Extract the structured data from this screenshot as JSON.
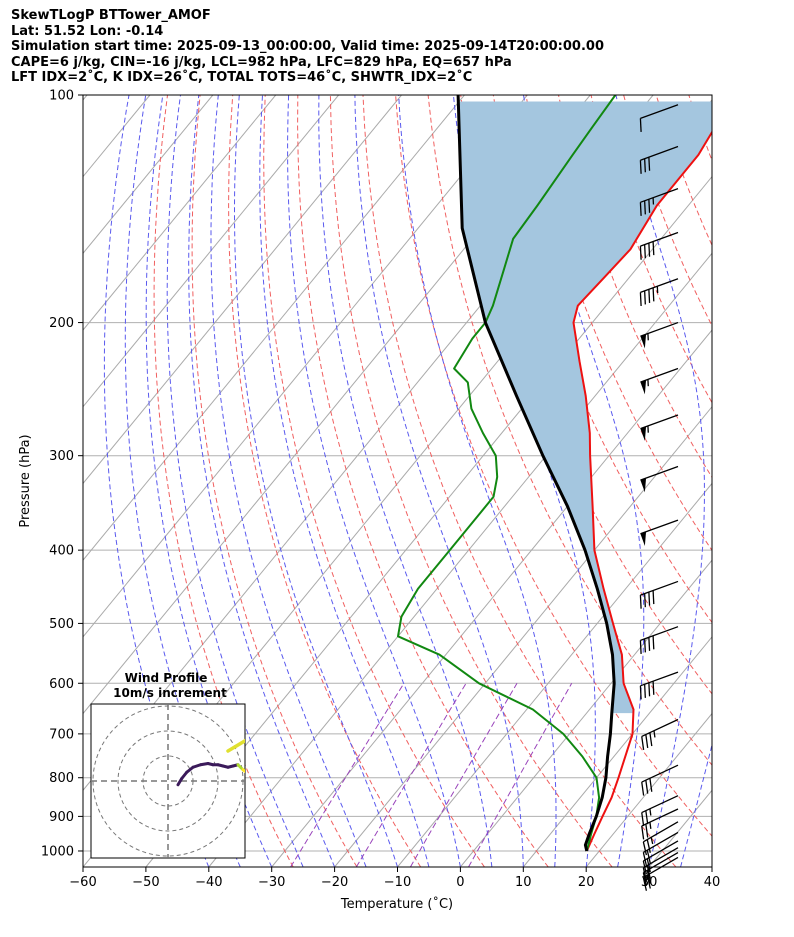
{
  "header": {
    "line1": "SkewTLogP BTTower_AMOF",
    "line2": "Lat: 51.52   Lon: -0.14",
    "line3": "Simulation start time: 2025-09-13_00:00:00, Valid time: 2025-09-14T20:00:00.00",
    "line4": "CAPE=6 j/kg, CIN=-16 j/kg, LCL=982 hPa, LFC=829 hPa, EQ=657 hPa",
    "line5": "LFT IDX=2˚C, K IDX=26˚C, TOTAL TOTS=46˚C, SHWTR_IDX=2˚C"
  },
  "colors": {
    "temperature": "#ee1111",
    "dewpoint": "#118811",
    "parcel": "#000000",
    "cape_fill": "#a4c6df",
    "dry_adiabat": "#f06060",
    "moist_adiabat": "#5a5aee",
    "isotherm": "#aaaaaa",
    "mixing_ratio": "#9944bb"
  },
  "chart_data": {
    "type": "line",
    "title": "SkewTLogP BTTower_AMOF",
    "xlabel": "Temperature (˚C)",
    "ylabel": "Pressure (hPa)",
    "xlim": [
      -60,
      40
    ],
    "ylim": [
      1050,
      100
    ],
    "x_ticks": [
      "−60",
      "−50",
      "−40",
      "−30",
      "−20",
      "−10",
      "0",
      "10",
      "20",
      "30",
      "40"
    ],
    "x_tick_values": [
      -60,
      -50,
      -40,
      -30,
      -20,
      -10,
      0,
      10,
      20,
      30,
      40
    ],
    "y_ticks": [
      "100",
      "200",
      "300",
      "400",
      "500",
      "600",
      "700",
      "800",
      "900",
      "1000"
    ],
    "y_tick_values": [
      100,
      200,
      300,
      400,
      500,
      600,
      700,
      800,
      900,
      1000
    ],
    "series": [
      {
        "name": "temperature",
        "points": [
          [
            1000,
            18.0
          ],
          [
            950,
            17.0
          ],
          [
            900,
            16.0
          ],
          [
            850,
            15.0
          ],
          [
            800,
            13.5
          ],
          [
            700,
            10.0
          ],
          [
            650,
            7.0
          ],
          [
            600,
            2.0
          ],
          [
            550,
            -2.0
          ],
          [
            500,
            -7.5
          ],
          [
            450,
            -13.5
          ],
          [
            400,
            -20.0
          ],
          [
            350,
            -26.0
          ],
          [
            300,
            -33.0
          ],
          [
            280,
            -36.0
          ],
          [
            250,
            -41.5
          ],
          [
            225,
            -47.0
          ],
          [
            210,
            -50.5
          ],
          [
            200,
            -53.0
          ],
          [
            190,
            -54.5
          ],
          [
            175,
            -54.0
          ],
          [
            160,
            -53.5
          ],
          [
            140,
            -55.0
          ],
          [
            120,
            -55.0
          ],
          [
            110,
            -56.0
          ],
          [
            100,
            -55.5
          ]
        ]
      },
      {
        "name": "dewpoint",
        "points": [
          [
            1000,
            18.0
          ],
          [
            950,
            16.5
          ],
          [
            900,
            15.0
          ],
          [
            850,
            13.0
          ],
          [
            800,
            10.0
          ],
          [
            750,
            5.0
          ],
          [
            700,
            -1.0
          ],
          [
            650,
            -9.0
          ],
          [
            600,
            -21.0
          ],
          [
            550,
            -31.0
          ],
          [
            520,
            -40.0
          ],
          [
            490,
            -42.0
          ],
          [
            450,
            -43.0
          ],
          [
            400,
            -43.0
          ],
          [
            360,
            -43.0
          ],
          [
            340,
            -43.0
          ],
          [
            320,
            -45.0
          ],
          [
            300,
            -48.0
          ],
          [
            280,
            -53.0
          ],
          [
            260,
            -58.0
          ],
          [
            240,
            -62.0
          ],
          [
            230,
            -66.0
          ],
          [
            210,
            -67.0
          ],
          [
            200,
            -67.0
          ],
          [
            190,
            -68.0
          ],
          [
            170,
            -71.0
          ],
          [
            155,
            -73.5
          ],
          [
            140,
            -74.0
          ],
          [
            120,
            -75.0
          ],
          [
            110,
            -75.5
          ],
          [
            100,
            -76.0
          ]
        ]
      },
      {
        "name": "parcel",
        "points": [
          [
            1000,
            18.0
          ],
          [
            982,
            17.0
          ],
          [
            950,
            16.2
          ],
          [
            900,
            15.0
          ],
          [
            850,
            13.5
          ],
          [
            800,
            11.5
          ],
          [
            750,
            9.0
          ],
          [
            700,
            6.5
          ],
          [
            657,
            4.0
          ],
          [
            600,
            0.5
          ],
          [
            550,
            -3.5
          ],
          [
            500,
            -8.5
          ],
          [
            450,
            -14.5
          ],
          [
            400,
            -21.5
          ],
          [
            350,
            -30.0
          ],
          [
            300,
            -40.5
          ],
          [
            250,
            -52.5
          ],
          [
            200,
            -67.0
          ],
          [
            150,
            -83.0
          ],
          [
            100,
            -101.0
          ]
        ]
      }
    ],
    "cape_region": "between parcel and temperature, 657 hPa to 100 hPa",
    "wind_barbs": [
      {
        "pressure": 1020,
        "speed_kt": 20,
        "dir_deg": 240
      },
      {
        "pressure": 1005,
        "speed_kt": 20,
        "dir_deg": 240
      },
      {
        "pressure": 990,
        "speed_kt": 20,
        "dir_deg": 240
      },
      {
        "pressure": 970,
        "speed_kt": 20,
        "dir_deg": 240
      },
      {
        "pressure": 945,
        "speed_kt": 20,
        "dir_deg": 240
      },
      {
        "pressure": 915,
        "speed_kt": 25,
        "dir_deg": 240
      },
      {
        "pressure": 880,
        "speed_kt": 25,
        "dir_deg": 245
      },
      {
        "pressure": 845,
        "speed_kt": 25,
        "dir_deg": 245
      },
      {
        "pressure": 770,
        "speed_kt": 30,
        "dir_deg": 245
      },
      {
        "pressure": 670,
        "speed_kt": 35,
        "dir_deg": 245
      },
      {
        "pressure": 580,
        "speed_kt": 40,
        "dir_deg": 250
      },
      {
        "pressure": 505,
        "speed_kt": 40,
        "dir_deg": 250
      },
      {
        "pressure": 440,
        "speed_kt": 40,
        "dir_deg": 250
      },
      {
        "pressure": 365,
        "speed_kt": 50,
        "dir_deg": 250
      },
      {
        "pressure": 310,
        "speed_kt": 50,
        "dir_deg": 250
      },
      {
        "pressure": 265,
        "speed_kt": 55,
        "dir_deg": 250
      },
      {
        "pressure": 230,
        "speed_kt": 55,
        "dir_deg": 250
      },
      {
        "pressure": 200,
        "speed_kt": 55,
        "dir_deg": 250
      },
      {
        "pressure": 175,
        "speed_kt": 45,
        "dir_deg": 250
      },
      {
        "pressure": 152,
        "speed_kt": 40,
        "dir_deg": 250
      },
      {
        "pressure": 133,
        "speed_kt": 35,
        "dir_deg": 250
      },
      {
        "pressure": 117,
        "speed_kt": 30,
        "dir_deg": 250
      },
      {
        "pressure": 103,
        "speed_kt": 10,
        "dir_deg": 250
      }
    ],
    "hodograph": {
      "title": "Wind Profile",
      "subtitle": "10m/s increment",
      "ring_increment_ms": 10,
      "rings": 3,
      "trace_uv_ms": [
        [
          4.0,
          -1.5
        ],
        [
          5.5,
          1.0
        ],
        [
          7.5,
          3.5
        ],
        [
          10.0,
          5.5
        ],
        [
          13.0,
          6.5
        ],
        [
          16.0,
          7.0
        ],
        [
          18.0,
          6.5
        ],
        [
          20.0,
          6.5
        ],
        [
          22.0,
          6.0
        ],
        [
          24.0,
          5.5
        ],
        [
          26.0,
          6.0
        ],
        [
          28.0,
          6.5
        ],
        [
          30.0,
          4.5
        ],
        [
          32.0,
          3.0
        ]
      ]
    }
  }
}
